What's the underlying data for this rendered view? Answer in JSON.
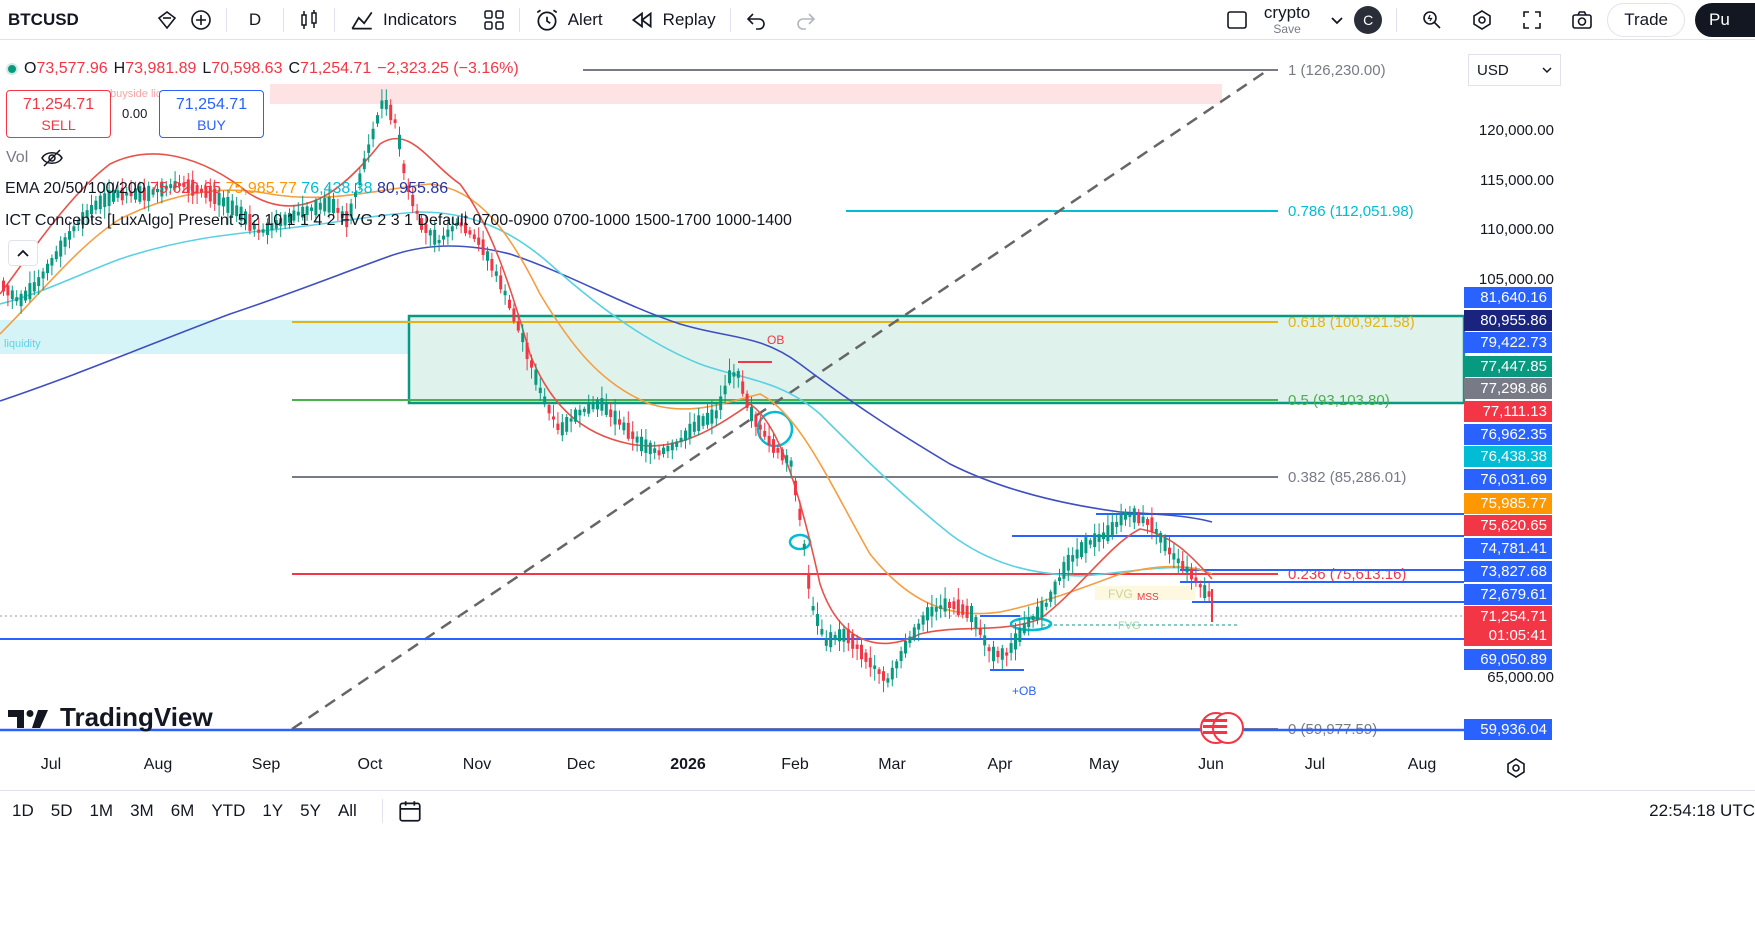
{
  "toolbar": {
    "symbol": "BTCUSD",
    "interval": "D",
    "indicators_label": "Indicators",
    "alert_label": "Alert",
    "replay_label": "Replay",
    "layout_name": "crypto",
    "layout_sub": "Save",
    "avatar_letter": "C",
    "trade_label": "Trade",
    "publish_label": "Pu"
  },
  "legend": {
    "o_label": "O",
    "o_value": "73,577.96",
    "h_label": "H",
    "h_value": "73,981.89",
    "l_label": "L",
    "l_value": "70,598.63",
    "c_label": "C",
    "c_value": "71,254.71",
    "change": "−2,323.25 (−3.16%)",
    "sell_price": "71,254.71",
    "sell_label": "SELL",
    "spread": "0.00",
    "buy_price": "71,254.71",
    "buy_label": "BUY",
    "vol_label": "Vol",
    "ema_label": "EMA 20/50/100/200",
    "ema20": "75,620.65",
    "ema50": "75,985.77",
    "ema100": "76,438.38",
    "ema200": "80,955.86",
    "ict_label": "ICT Concepts [LuxAlgo] Present 5 2 10 1 1 4 2 FVG 2 3 1 Default 0700-0900 0700-1000 1500-1700 1000-1400"
  },
  "currency": "USD",
  "chart_labels": {
    "buyside_liquidity": "buyside liqu",
    "liquidity": "liquidity",
    "ob": "OB",
    "plus_ob": "+OB",
    "fvg": "FVG",
    "mss": "MSS",
    "fvg2": "FVG"
  },
  "fib_levels": [
    {
      "level": "1 (126,230.00)",
      "color": "#787b86"
    },
    {
      "level": "0.786 (112,051.98)",
      "color": "#00bcd4"
    },
    {
      "level": "0.618 (100,921.58)",
      "color": "#e5b413"
    },
    {
      "level": "0.5 (93,103.80)",
      "color": "#4caf50"
    },
    {
      "level": "0.382 (85,286.01)",
      "color": "#787b86"
    },
    {
      "level": "0.236 (75,613.16)",
      "color": "#f23645"
    },
    {
      "level": "0 (59,977.59)",
      "color": "#787b86"
    }
  ],
  "price_ticks": [
    "120,000.00",
    "115,000.00",
    "110,000.00",
    "105,000.00",
    "65,000.00"
  ],
  "price_labels": [
    {
      "value": "81,640.16",
      "bg": "#2962ff"
    },
    {
      "value": "80,955.86",
      "bg": "#1a237e"
    },
    {
      "value": "79,422.73",
      "bg": "#2962ff"
    },
    {
      "value": "77,447.85",
      "bg": "#089981"
    },
    {
      "value": "77,298.86",
      "bg": "#787b86"
    },
    {
      "value": "77,111.13",
      "bg": "#f23645"
    },
    {
      "value": "76,962.35",
      "bg": "#2962ff"
    },
    {
      "value": "76,438.38",
      "bg": "#00bcd4"
    },
    {
      "value": "76,031.69",
      "bg": "#2962ff"
    },
    {
      "value": "75,985.77",
      "bg": "#ff9800"
    },
    {
      "value": "75,620.65",
      "bg": "#f23645"
    },
    {
      "value": "74,781.41",
      "bg": "#2962ff"
    },
    {
      "value": "73,827.68",
      "bg": "#2962ff"
    },
    {
      "value": "72,679.61",
      "bg": "#2962ff"
    },
    {
      "value": "71,254.71",
      "bg": "#f23645"
    },
    {
      "value": "01:05:41",
      "bg": "#f23645"
    },
    {
      "value": "69,050.89",
      "bg": "#2962ff"
    },
    {
      "value": "59,936.04",
      "bg": "#2962ff"
    }
  ],
  "time_labels": [
    {
      "label": "Jul",
      "bold": false
    },
    {
      "label": "Aug",
      "bold": false
    },
    {
      "label": "Sep",
      "bold": false
    },
    {
      "label": "Oct",
      "bold": false
    },
    {
      "label": "Nov",
      "bold": false
    },
    {
      "label": "Dec",
      "bold": false
    },
    {
      "label": "2026",
      "bold": true
    },
    {
      "label": "Feb",
      "bold": false
    },
    {
      "label": "Mar",
      "bold": false
    },
    {
      "label": "Apr",
      "bold": false
    },
    {
      "label": "May",
      "bold": false
    },
    {
      "label": "Jun",
      "bold": false
    },
    {
      "label": "Jul",
      "bold": false
    },
    {
      "label": "Aug",
      "bold": false
    }
  ],
  "logo_text": "TradingView",
  "ranges": [
    "1D",
    "5D",
    "1M",
    "3M",
    "6M",
    "YTD",
    "1Y",
    "5Y",
    "All"
  ],
  "clock": "22:54:18 UTC"
}
